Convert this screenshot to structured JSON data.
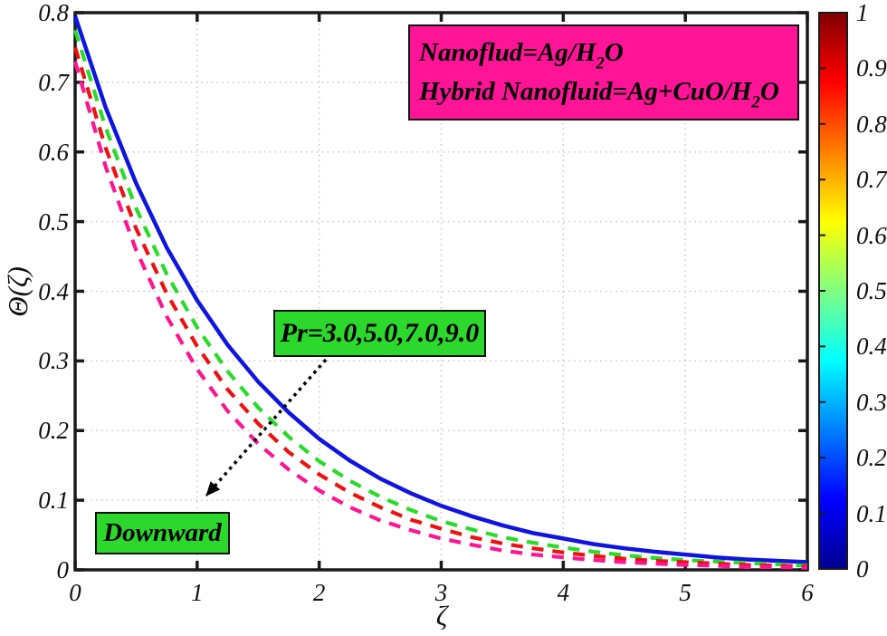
{
  "figure": {
    "background": "#FFFFFF",
    "axis_color": "#1A1A1A",
    "grid_color": "#C9C9C9"
  },
  "chart_data": {
    "type": "line",
    "title": "",
    "xlabel": "ζ",
    "ylabel": "Θ(ζ)",
    "xlim": [
      0,
      6
    ],
    "ylim": [
      0,
      0.8
    ],
    "grid": "dotted",
    "legend_position": "none",
    "xticks": {
      "values": [
        0,
        1,
        2,
        3,
        4,
        5,
        6
      ],
      "labels": [
        "0",
        "1",
        "2",
        "3",
        "4",
        "5",
        "6"
      ]
    },
    "yticks": {
      "values": [
        0,
        0.1,
        0.2,
        0.3,
        0.4,
        0.5,
        0.6,
        0.7,
        0.8
      ],
      "labels": [
        "0",
        "0.1",
        "0.2",
        "0.3",
        "0.4",
        "0.5",
        "0.6",
        "0.7",
        "0.8"
      ]
    },
    "x": [
      0,
      0.25,
      0.5,
      0.75,
      1,
      1.25,
      1.5,
      1.75,
      2,
      2.25,
      2.5,
      2.75,
      3,
      3.25,
      3.5,
      3.75,
      4,
      4.25,
      4.5,
      4.75,
      5,
      5.25,
      5.5,
      5.75,
      6
    ],
    "series": [
      {
        "name": "Pr=3.0",
        "line_style": "solid",
        "color": "#0F14E1",
        "values": [
          0.795,
          0.664,
          0.555,
          0.463,
          0.387,
          0.323,
          0.27,
          0.226,
          0.188,
          0.157,
          0.131,
          0.11,
          0.092,
          0.077,
          0.064,
          0.053,
          0.045,
          0.037,
          0.031,
          0.026,
          0.022,
          0.018,
          0.015,
          0.013,
          0.011
        ]
      },
      {
        "name": "Pr=5.0",
        "line_style": "dashed",
        "color": "#2ADB2A",
        "values": [
          0.775,
          0.635,
          0.519,
          0.425,
          0.348,
          0.285,
          0.233,
          0.191,
          0.156,
          0.128,
          0.105,
          0.086,
          0.07,
          0.058,
          0.047,
          0.039,
          0.032,
          0.026,
          0.021,
          0.017,
          0.014,
          0.012,
          0.01,
          0.008,
          0.006
        ]
      },
      {
        "name": "Pr=7.0",
        "line_style": "dashed",
        "color": "#EE1111",
        "values": [
          0.75,
          0.606,
          0.49,
          0.397,
          0.321,
          0.259,
          0.21,
          0.169,
          0.137,
          0.111,
          0.09,
          0.072,
          0.059,
          0.047,
          0.038,
          0.031,
          0.025,
          0.02,
          0.016,
          0.013,
          0.011,
          0.009,
          0.007,
          0.006,
          0.005
        ]
      },
      {
        "name": "Pr=9.0",
        "line_style": "dashed",
        "color": "#FF1493",
        "values": [
          0.73,
          0.579,
          0.459,
          0.364,
          0.288,
          0.228,
          0.181,
          0.144,
          0.114,
          0.09,
          0.071,
          0.057,
          0.045,
          0.036,
          0.028,
          0.022,
          0.018,
          0.014,
          0.011,
          0.009,
          0.007,
          0.006,
          0.004,
          0.004,
          0.003
        ]
      }
    ],
    "colorbar": {
      "colormap": "jet",
      "min": 0,
      "max": 1,
      "tick_values": [
        0,
        0.1,
        0.2,
        0.3,
        0.4,
        0.5,
        0.6,
        0.7,
        0.8,
        0.9,
        1
      ],
      "tick_labels": [
        "0",
        "0.1",
        "0.2",
        "0.3",
        "0.4",
        "0.5",
        "0.6",
        "0.7",
        "0.8",
        "0.9",
        "1"
      ],
      "stops_bottom_to_top": [
        "#00008F",
        "#0000FF",
        "#00FFFF",
        "#FFFF00",
        "#FF0000",
        "#800000"
      ]
    }
  },
  "annotations": {
    "fluid_box": {
      "fill": "#FF1497",
      "line1": {
        "pre": "Nanoflud=Ag/H",
        "sub": "2",
        "post": "O"
      },
      "line2": {
        "pre": "Hybrid Nanofluid=Ag+CuO/H",
        "sub": "2",
        "post": "O"
      }
    },
    "pr_box": {
      "label": "Pr=3.0,5.0,7.0,9.0",
      "fill": "#2BD82B"
    },
    "downward_box": {
      "label": "Downward",
      "fill": "#2BD82B"
    },
    "arrow": {
      "style": "dotted",
      "color": "#000000",
      "direction": "down-left"
    }
  }
}
